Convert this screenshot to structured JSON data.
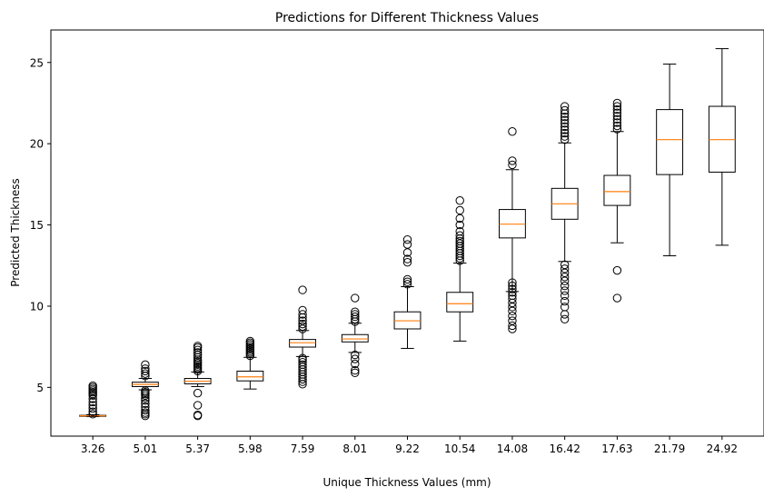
{
  "chart_data": {
    "type": "box",
    "title": "Predictions for Different Thickness Values",
    "xlabel": "Unique Thickness Values (mm)",
    "ylabel": "Predicted Thickness",
    "ylim": [
      2.0,
      27.0
    ],
    "yticks": [
      5,
      10,
      15,
      20,
      25
    ],
    "grid": false,
    "colors": {
      "box": "#000000",
      "median": "#ff7f0e",
      "flier": "#000000"
    },
    "categories": [
      "3.26",
      "5.01",
      "5.37",
      "5.98",
      "7.59",
      "8.01",
      "9.22",
      "10.54",
      "14.08",
      "16.42",
      "17.63",
      "21.79",
      "24.92"
    ],
    "boxes": [
      {
        "whislo": 3.2,
        "q1": 3.22,
        "med": 3.25,
        "q3": 3.28,
        "whishi": 3.32,
        "fliers": [
          3.35,
          3.5,
          3.7,
          3.9,
          4.1,
          4.3,
          4.5,
          4.6,
          4.7,
          4.8,
          4.9,
          5.0,
          5.1
        ]
      },
      {
        "whislo": 4.85,
        "q1": 5.05,
        "med": 5.18,
        "q3": 5.32,
        "whishi": 5.55,
        "fliers": [
          3.25,
          3.35,
          3.45,
          3.6,
          3.8,
          4.0,
          4.2,
          4.35,
          4.5,
          4.6,
          4.7,
          4.8,
          5.7,
          5.85,
          6.0,
          6.15,
          6.4
        ]
      },
      {
        "whislo": 5.05,
        "q1": 5.22,
        "med": 5.38,
        "q3": 5.55,
        "whishi": 5.95,
        "fliers": [
          3.25,
          3.3,
          3.9,
          4.65,
          6.0,
          6.1,
          6.2,
          6.3,
          6.4,
          6.5,
          6.6,
          6.7,
          6.85,
          7.0,
          7.15,
          7.3,
          7.45,
          7.55
        ]
      },
      {
        "whislo": 4.9,
        "q1": 5.4,
        "med": 5.65,
        "q3": 6.0,
        "whishi": 6.85,
        "fliers": [
          6.95,
          7.05,
          7.15,
          7.25,
          7.35,
          7.45,
          7.55,
          7.65,
          7.75,
          7.85
        ]
      },
      {
        "whislo": 6.9,
        "q1": 7.48,
        "med": 7.75,
        "q3": 7.95,
        "whishi": 8.5,
        "fliers": [
          5.2,
          5.35,
          5.5,
          5.65,
          5.8,
          5.95,
          6.1,
          6.25,
          6.4,
          6.55,
          6.7,
          6.8,
          8.6,
          8.75,
          8.9,
          9.1,
          9.3,
          9.5,
          9.75,
          11.0
        ]
      },
      {
        "whislo": 7.15,
        "q1": 7.8,
        "med": 7.98,
        "q3": 8.25,
        "whishi": 8.95,
        "fliers": [
          5.9,
          6.05,
          6.45,
          6.75,
          7.0,
          9.05,
          9.2,
          9.35,
          9.5,
          9.65,
          10.5
        ]
      },
      {
        "whislo": 7.4,
        "q1": 8.6,
        "med": 9.1,
        "q3": 9.65,
        "whishi": 11.2,
        "fliers": [
          11.35,
          11.5,
          11.65,
          12.7,
          12.9,
          13.3,
          13.8,
          14.1
        ]
      },
      {
        "whislo": 7.85,
        "q1": 9.65,
        "med": 10.15,
        "q3": 10.85,
        "whishi": 12.65,
        "fliers": [
          12.8,
          12.95,
          13.1,
          13.25,
          13.4,
          13.55,
          13.7,
          13.85,
          14.0,
          14.15,
          14.35,
          14.6,
          15.0,
          15.4,
          15.9,
          16.5
        ]
      },
      {
        "whislo": 10.9,
        "q1": 14.2,
        "med": 15.05,
        "q3": 15.95,
        "whishi": 18.4,
        "fliers": [
          8.6,
          8.8,
          9.1,
          9.4,
          9.7,
          9.95,
          10.2,
          10.45,
          10.65,
          10.85,
          11.05,
          11.25,
          11.45,
          18.7,
          18.95,
          20.75
        ]
      },
      {
        "whislo": 12.75,
        "q1": 15.35,
        "med": 16.3,
        "q3": 17.25,
        "whishi": 20.05,
        "fliers": [
          9.2,
          9.5,
          9.95,
          10.3,
          10.65,
          10.95,
          11.25,
          11.55,
          11.8,
          12.05,
          12.3,
          12.55,
          20.25,
          20.45,
          20.65,
          20.85,
          21.05,
          21.25,
          21.45,
          21.65,
          21.85,
          22.05,
          22.3
        ]
      },
      {
        "whislo": 13.9,
        "q1": 16.2,
        "med": 17.05,
        "q3": 18.05,
        "whishi": 20.75,
        "fliers": [
          10.5,
          12.2,
          20.9,
          21.1,
          21.3,
          21.5,
          21.7,
          21.9,
          22.1,
          22.3,
          22.5
        ]
      },
      {
        "whislo": 13.1,
        "q1": 18.1,
        "med": 20.25,
        "q3": 22.1,
        "whishi": 24.9,
        "fliers": []
      },
      {
        "whislo": 13.75,
        "q1": 18.25,
        "med": 20.25,
        "q3": 22.3,
        "whishi": 25.85,
        "fliers": []
      }
    ]
  }
}
